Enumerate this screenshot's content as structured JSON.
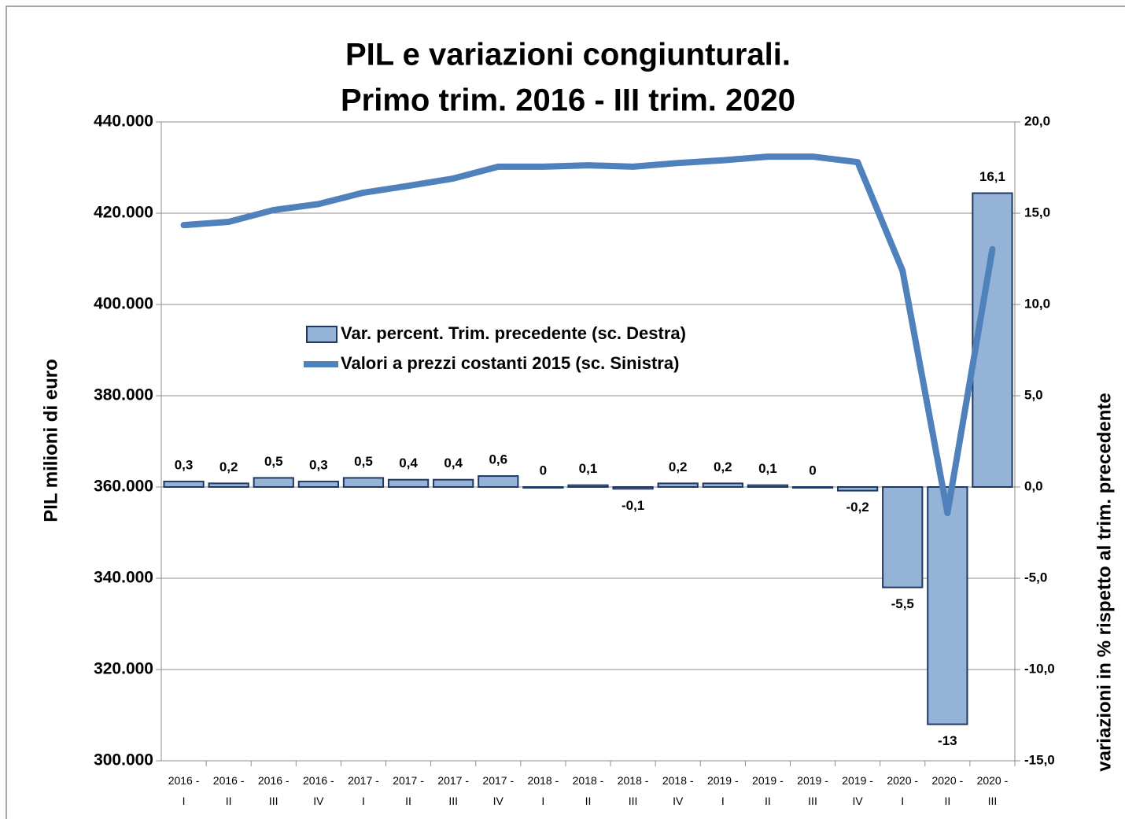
{
  "chart_data": {
    "type": "bar-line",
    "title": "PIL e variazioni congiunturali.",
    "subtitle": "Primo trim. 2016 - III trim. 2020",
    "y_label": "PIL milioni di euro",
    "y2_label": "variazioni in % rispetto al trim. precedente",
    "categories": [
      "2016 - I",
      "2016 - II",
      "2016 - III",
      "2016 - IV",
      "2017 - I",
      "2017 - II",
      "2017 - III",
      "2017 - IV",
      "2018 - I",
      "2018 - II",
      "2018 - III",
      "2018 - IV",
      "2019 - I",
      "2019 - II",
      "2019 - III",
      "2019 - IV",
      "2020 - I",
      "2020 - II",
      "2020 - III"
    ],
    "ylim": [
      300000,
      440000
    ],
    "yticks": [
      {
        "value": 300000,
        "label": "300.000"
      },
      {
        "value": 320000,
        "label": "320.000"
      },
      {
        "value": 340000,
        "label": "340.000"
      },
      {
        "value": 360000,
        "label": "360.000"
      },
      {
        "value": 380000,
        "label": "380.000"
      },
      {
        "value": 400000,
        "label": "400.000"
      },
      {
        "value": 420000,
        "label": "420.000"
      },
      {
        "value": 440000,
        "label": "440.000"
      }
    ],
    "y2lim": [
      -15,
      20
    ],
    "y2ticks": [
      {
        "value": -15,
        "label": "-15,0"
      },
      {
        "value": -10,
        "label": "-10,0"
      },
      {
        "value": -5,
        "label": "-5,0"
      },
      {
        "value": 0,
        "label": "0,0"
      },
      {
        "value": 5,
        "label": "5,0"
      },
      {
        "value": 10,
        "label": "10,0"
      },
      {
        "value": 15,
        "label": "15,0"
      },
      {
        "value": 20,
        "label": "20,0"
      }
    ],
    "grid": true,
    "series": [
      {
        "name": "Var. percent. Trim. precedente (sc. Destra)",
        "type": "bar",
        "axis": "y2",
        "color": "#95b3d7",
        "edge_color": "#1f3864",
        "values": [
          0.3,
          0.2,
          0.5,
          0.3,
          0.5,
          0.4,
          0.4,
          0.6,
          0,
          0.1,
          -0.1,
          0.2,
          0.2,
          0.1,
          0,
          -0.2,
          -5.5,
          -13,
          16.1
        ],
        "value_labels": [
          "0,3",
          "0,2",
          "0,5",
          "0,3",
          "0,5",
          "0,4",
          "0,4",
          "0,6",
          "0",
          "0,1",
          "-0,1",
          "0,2",
          "0,2",
          "0,1",
          "0",
          "-0,2",
          "-5,5",
          "-13",
          "16,1"
        ]
      },
      {
        "name": "Valori a prezzi costanti 2015  (sc. Sinistra)",
        "type": "line",
        "axis": "y",
        "color": "#4f81bd",
        "values": [
          417400,
          418100,
          420700,
          422000,
          424500,
          426000,
          427600,
          430200,
          430200,
          430500,
          430200,
          431000,
          431600,
          432400,
          432400,
          431200,
          407400,
          354300,
          412100
        ]
      }
    ]
  }
}
